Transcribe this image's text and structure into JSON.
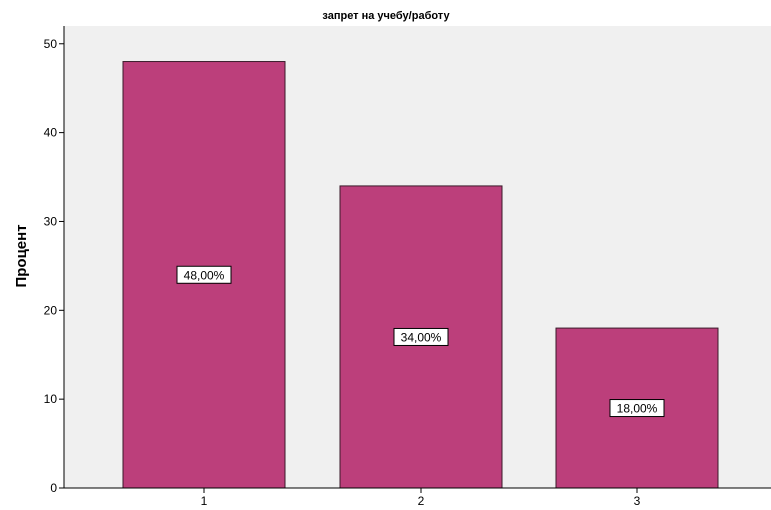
{
  "chart_data": {
    "type": "bar",
    "title": "запрет на учебу/работу",
    "xlabel": "",
    "ylabel": "Процент",
    "categories": [
      "1",
      "2",
      "3"
    ],
    "values": [
      48,
      34,
      18
    ],
    "data_labels": [
      "48,00%",
      "34,00%",
      "18,00%"
    ],
    "ylim": [
      0,
      52
    ],
    "yticks": [
      0,
      10,
      20,
      30,
      40,
      50
    ],
    "grid": false,
    "legend": "none",
    "colors": {
      "bar": "#BC3F7B",
      "bar_stroke": "#3a1a2a",
      "plot_background": "#F0F0F0",
      "label_box": "#ffffff"
    }
  }
}
